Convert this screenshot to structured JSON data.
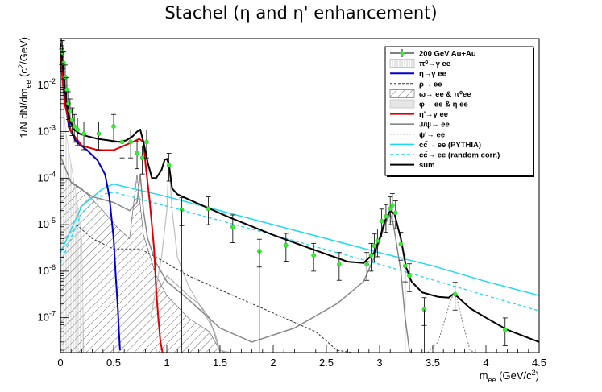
{
  "chart_data": {
    "type": "line",
    "title": "Stachel (η and η' enhancement)",
    "xlabel": "m_ee (GeV/c²)",
    "ylabel": "1/N dN/dm_ee (c²/GeV)",
    "xlim": [
      0,
      4.5
    ],
    "ylim_log10": [
      -7.75,
      -1.0
    ],
    "yscale": "log",
    "x_ticks": [
      "0",
      "0.5",
      "1",
      "1.5",
      "2",
      "2.5",
      "3",
      "3.5",
      "4",
      "4.5"
    ],
    "y_ticks": [
      "10^-7",
      "10^-6",
      "10^-5",
      "10^-4",
      "10^-3",
      "10^-2"
    ],
    "legend_position": "top-right",
    "legend": [
      "200 GeV Au+Au",
      "π⁰→γ ee",
      "η→γ ee",
      "ρ→ ee",
      "ω→ ee & π⁰ee",
      "φ→ ee & η ee",
      "η'→γ ee",
      "J/ψ→ ee",
      "ψ'→ ee",
      "cc̄→ ee (PYTHIA)",
      "cc̄→ ee (random corr.)",
      "sum"
    ],
    "colors": {
      "data": "#33ee33",
      "eta": "#0000cc",
      "etaprime": "#dd0000",
      "jpsi": "#888888",
      "charm": "#22d8ee",
      "sum": "#000000"
    },
    "series": [
      {
        "name": "200 GeV Au+Au",
        "x": [
          0.01,
          0.02,
          0.03,
          0.045,
          0.06,
          0.075,
          0.09,
          0.11,
          0.13,
          0.16,
          0.22,
          0.36,
          0.5,
          0.58,
          0.66,
          0.72,
          0.77,
          0.81,
          1.02,
          1.14,
          1.39,
          1.62,
          1.87,
          2.12,
          2.38,
          2.62,
          2.88,
          2.92,
          2.95,
          2.98,
          3.02,
          3.06,
          3.1,
          3.12,
          3.15,
          3.2,
          3.24,
          3.28,
          3.42,
          3.71,
          4.18
        ],
        "y": [
          0.06,
          0.05,
          0.03,
          0.015,
          0.008,
          0.004,
          0.0028,
          0.0018,
          0.0013,
          0.0011,
          0.0009,
          0.0009,
          0.0013,
          0.0006,
          0.0006,
          0.00035,
          0.00027,
          0.0006,
          0.00019,
          2.1e-05,
          2.2e-05,
          9e-06,
          2.7e-06,
          3.6e-06,
          2.2e-06,
          1.4e-06,
          1.4e-06,
          2.2e-06,
          3.5e-06,
          4.5e-06,
          1.2e-05,
          1.5e-05,
          2.2e-05,
          2.6e-05,
          1.8e-05,
          3.8e-06,
          1.3e-06,
          8e-07,
          1.5e-07,
          3.2e-07,
          5.5e-08
        ]
      },
      {
        "name": "η→γ ee",
        "x": [
          0.0,
          0.03,
          0.08,
          0.15,
          0.25,
          0.35,
          0.42,
          0.46,
          0.5,
          0.52,
          0.54,
          0.55,
          0.56
        ],
        "y": [
          0.04,
          0.008,
          0.0012,
          0.0006,
          0.0004,
          0.00024,
          0.00012,
          4e-05,
          5e-06,
          8e-07,
          1.5e-07,
          5e-08,
          2e-08
        ]
      },
      {
        "name": "η'→γ ee",
        "x": [
          0.0,
          0.04,
          0.1,
          0.2,
          0.35,
          0.5,
          0.6,
          0.68,
          0.74,
          0.78,
          0.8,
          0.84,
          0.88,
          0.9,
          0.92,
          0.94,
          0.96
        ],
        "y": [
          0.05,
          0.004,
          0.001,
          0.0005,
          0.0004,
          0.0004,
          0.0005,
          0.0006,
          0.0007,
          0.0006,
          0.0002,
          3e-05,
          3e-06,
          4e-07,
          1e-07,
          3e-08,
          1.2e-08
        ]
      },
      {
        "name": "J/ψ→ ee",
        "x": [
          0.0,
          0.1,
          0.3,
          0.5,
          0.65,
          0.72,
          0.75,
          0.78,
          0.82,
          0.9,
          1.0,
          1.2,
          1.5,
          1.8,
          2.2,
          2.6,
          2.85,
          2.95,
          3.05,
          3.1,
          3.13,
          3.2,
          3.24,
          3.28,
          3.3
        ],
        "y": [
          0.0003,
          8e-05,
          4e-05,
          3e-05,
          2e-05,
          3e-05,
          0.00012,
          2e-05,
          5e-06,
          1.5e-06,
          6e-07,
          2.5e-07,
          6e-08,
          3e-08,
          6e-08,
          2e-07,
          6e-07,
          2e-06,
          1e-05,
          1.7e-05,
          1e-05,
          1e-06,
          1e-07,
          2e-08,
          1.2e-08
        ]
      },
      {
        "name": "cc̄→ ee (PYTHIA)",
        "x": [
          0.0,
          0.2,
          0.4,
          0.5,
          1.0,
          2.0,
          3.0,
          3.5,
          4.0,
          4.5
        ],
        "y": [
          2.5e-06,
          2.5e-05,
          6e-05,
          7.5e-05,
          4e-05,
          1e-05,
          2.5e-06,
          1.3e-06,
          6e-07,
          3e-07
        ]
      },
      {
        "name": "cc̄→ ee (random corr.)",
        "x": [
          0.0,
          0.2,
          0.4,
          0.5,
          1.0,
          2.0,
          3.0,
          4.0,
          4.5
        ],
        "y": [
          1.5e-06,
          1.8e-05,
          4.5e-05,
          5e-05,
          2.5e-05,
          6e-06,
          1.4e-06,
          3e-07,
          1.4e-07
        ]
      },
      {
        "name": "sum",
        "x": [
          0.0,
          0.02,
          0.04,
          0.06,
          0.08,
          0.1,
          0.13,
          0.18,
          0.25,
          0.35,
          0.45,
          0.55,
          0.62,
          0.68,
          0.72,
          0.75,
          0.78,
          0.82,
          0.86,
          0.9,
          0.95,
          0.98,
          1.0,
          1.02,
          1.05,
          1.1,
          1.3,
          1.6,
          2.0,
          2.4,
          2.7,
          2.85,
          2.95,
          3.0,
          3.05,
          3.1,
          3.14,
          3.2,
          3.25,
          3.3,
          3.4,
          3.55,
          3.65,
          3.7,
          3.75,
          3.85,
          4.0,
          4.2,
          4.5
        ],
        "y": [
          0.08,
          0.03,
          0.01,
          0.004,
          0.002,
          0.0015,
          0.0011,
          0.0009,
          0.0008,
          0.0007,
          0.00065,
          0.0006,
          0.00065,
          0.0008,
          0.001,
          0.0011,
          0.0006,
          0.00022,
          0.0001,
          0.0001,
          0.00015,
          0.00025,
          0.00026,
          0.0002,
          6e-05,
          4.5e-05,
          2.8e-05,
          1.4e-05,
          6e-06,
          2.8e-06,
          1.6e-06,
          1.5e-06,
          2.5e-06,
          5e-06,
          1.2e-05,
          2e-05,
          1.7e-05,
          5e-06,
          1.2e-06,
          6e-07,
          3.5e-07,
          2.8e-07,
          2.7e-07,
          3.3e-07,
          2.6e-07,
          1.6e-07,
          1e-07,
          5.5e-08,
          3e-08
        ]
      }
    ]
  }
}
